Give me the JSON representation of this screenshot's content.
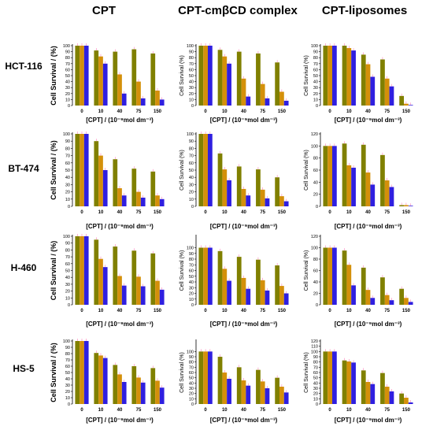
{
  "column_titles": [
    "CPT",
    "CPT-cmβCD complex",
    "CPT-liposomes"
  ],
  "row_labels": [
    "HCT-116",
    "BT-474",
    "H-460",
    "HS-5"
  ],
  "colors": {
    "bar1": "#808000",
    "bar2": "#d4900a",
    "bar3": "#2f1fe0",
    "err": "#ff66aa"
  },
  "chart_data": [
    {
      "type": "bar",
      "cell_line": "HCT-116",
      "formulation": "CPT",
      "categories": [
        "0",
        "10",
        "40",
        "75",
        "150"
      ],
      "series": [
        {
          "values": [
            100,
            92,
            90,
            94,
            87
          ]
        },
        {
          "values": [
            100,
            82,
            52,
            40,
            25
          ]
        },
        {
          "values": [
            100,
            70,
            20,
            12,
            10
          ]
        }
      ],
      "ylabel": "Cell Survival / (%)",
      "xlabel": "[CPT] / (10⁻⁹mol dm⁻³)",
      "ylim": [
        0,
        100
      ],
      "yticks": [
        0,
        10,
        20,
        30,
        40,
        50,
        60,
        70,
        80,
        90,
        100
      ]
    },
    {
      "type": "bar",
      "cell_line": "HCT-116",
      "formulation": "CPT-cmβCD complex",
      "categories": [
        "0",
        "10",
        "40",
        "75",
        "150"
      ],
      "series": [
        {
          "values": [
            100,
            93,
            90,
            87,
            72
          ]
        },
        {
          "values": [
            100,
            82,
            45,
            36,
            23
          ]
        },
        {
          "values": [
            100,
            70,
            15,
            12,
            8
          ]
        }
      ],
      "ylabel": "Cell Survival (%)",
      "xlabel": "[CPT] / (10⁻⁹mol dm⁻³)",
      "ylim": [
        0,
        100
      ],
      "yticks": [
        0,
        10,
        20,
        30,
        40,
        50,
        60,
        70,
        80,
        90,
        100
      ]
    },
    {
      "type": "bar",
      "cell_line": "HCT-116",
      "formulation": "CPT-liposomes",
      "categories": [
        "0",
        "10",
        "40",
        "75",
        "150"
      ],
      "series": [
        {
          "values": [
            100,
            100,
            85,
            77,
            16
          ]
        },
        {
          "values": [
            100,
            96,
            69,
            45,
            3
          ]
        },
        {
          "values": [
            100,
            92,
            48,
            32,
            1
          ]
        }
      ],
      "ylabel": "Cell Survival (%)",
      "xlabel": "[CPT] / (10⁻⁹mol dm⁻³)",
      "ylim": [
        0,
        100
      ],
      "yticks": [
        0,
        10,
        20,
        30,
        40,
        50,
        60,
        70,
        80,
        90,
        100
      ]
    },
    {
      "type": "bar",
      "cell_line": "BT-474",
      "formulation": "CPT",
      "categories": [
        "0",
        "10",
        "40",
        "75",
        "150"
      ],
      "series": [
        {
          "values": [
            100,
            90,
            65,
            52,
            48
          ]
        },
        {
          "values": [
            100,
            70,
            25,
            20,
            15
          ]
        },
        {
          "values": [
            100,
            50,
            15,
            12,
            10
          ]
        }
      ],
      "ylabel": "Cell Survival / (%)",
      "xlabel": "[CPT] / (10⁻⁹mol dm⁻³)",
      "ylim": [
        0,
        100
      ],
      "yticks": [
        0,
        10,
        20,
        30,
        40,
        50,
        60,
        70,
        80,
        90,
        100
      ]
    },
    {
      "type": "bar",
      "cell_line": "BT-474",
      "formulation": "CPT-cmβCD complex",
      "categories": [
        "0",
        "10",
        "40",
        "75",
        "150"
      ],
      "series": [
        {
          "values": [
            100,
            73,
            55,
            51,
            40
          ]
        },
        {
          "values": [
            100,
            51,
            24,
            23,
            14
          ]
        },
        {
          "values": [
            100,
            36,
            15,
            11,
            7
          ]
        }
      ],
      "ylabel": "Cell Survival (%)",
      "xlabel": "[CPT] / (10⁻⁹mol dm⁻³)",
      "ylim": [
        0,
        100
      ],
      "yticks": [
        0,
        10,
        20,
        30,
        40,
        50,
        60,
        70,
        80,
        90,
        100
      ]
    },
    {
      "type": "bar",
      "cell_line": "BT-474",
      "formulation": "CPT-liposomes",
      "categories": [
        "0",
        "10",
        "40",
        "75",
        "150"
      ],
      "series": [
        {
          "values": [
            100,
            104,
            102,
            85,
            2
          ]
        },
        {
          "values": [
            100,
            68,
            56,
            43,
            2
          ]
        },
        {
          "values": [
            100,
            64,
            36,
            32,
            1
          ]
        }
      ],
      "ylabel": "Cell Survival (%)",
      "xlabel": "[CPT] / (10⁻⁹mol dm⁻³)",
      "ylim": [
        0,
        120
      ],
      "yticks": [
        0,
        20,
        40,
        60,
        80,
        100,
        120
      ]
    },
    {
      "type": "bar",
      "cell_line": "H-460",
      "formulation": "CPT",
      "categories": [
        "0",
        "10",
        "40",
        "75",
        "150"
      ],
      "series": [
        {
          "values": [
            100,
            95,
            85,
            79,
            75
          ]
        },
        {
          "values": [
            100,
            67,
            42,
            41,
            35
          ]
        },
        {
          "values": [
            100,
            55,
            28,
            27,
            22
          ]
        }
      ],
      "ylabel": "Cell Survival / (%)",
      "xlabel": "[CPT] / (10⁻⁹mol dm⁻³)",
      "ylim": [
        0,
        100
      ],
      "yticks": [
        0,
        10,
        20,
        30,
        40,
        50,
        60,
        70,
        80,
        90,
        100
      ]
    },
    {
      "type": "bar",
      "cell_line": "H-460",
      "formulation": "CPT-cmβCD complex",
      "categories": [
        "0",
        "10",
        "40",
        "75",
        "150"
      ],
      "series": [
        {
          "values": [
            100,
            94,
            84,
            79,
            69
          ]
        },
        {
          "values": [
            100,
            63,
            47,
            43,
            33
          ]
        },
        {
          "values": [
            100,
            42,
            28,
            25,
            20
          ]
        }
      ],
      "ylabel": "Cell Survival (%)",
      "xlabel": "[CPT] / (10⁻⁹mol dm⁻³)",
      "ylim": [
        0,
        120
      ],
      "yticks": [
        0,
        10,
        20,
        30,
        40,
        50,
        60,
        70,
        80,
        90,
        100
      ]
    },
    {
      "type": "bar",
      "cell_line": "H-460",
      "formulation": "CPT-liposomes",
      "categories": [
        "0",
        "10",
        "40",
        "75",
        "150"
      ],
      "series": [
        {
          "values": [
            100,
            95,
            65,
            48,
            28
          ]
        },
        {
          "values": [
            100,
            70,
            26,
            17,
            12
          ]
        },
        {
          "values": [
            100,
            34,
            12,
            8,
            5
          ]
        }
      ],
      "ylabel": "Cell Survival (%)",
      "xlabel": "[CPT] / (10⁻⁹mol dm⁻³)",
      "ylim": [
        0,
        120
      ],
      "yticks": [
        0,
        20,
        40,
        60,
        80,
        100,
        120
      ]
    },
    {
      "type": "bar",
      "cell_line": "HS-5",
      "formulation": "CPT",
      "categories": [
        "0",
        "10",
        "40",
        "75",
        "150"
      ],
      "series": [
        {
          "values": [
            100,
            81,
            62,
            60,
            57
          ]
        },
        {
          "values": [
            100,
            77,
            47,
            42,
            37
          ]
        },
        {
          "values": [
            100,
            73,
            35,
            34,
            26
          ]
        }
      ],
      "ylabel": "Cell Survival / (%)",
      "xlabel": "[CPT] / (10⁻⁹mol dm⁻³)",
      "ylim": [
        0,
        100
      ],
      "yticks": [
        0,
        10,
        20,
        30,
        40,
        50,
        60,
        70,
        80,
        90,
        100
      ]
    },
    {
      "type": "bar",
      "cell_line": "HS-5",
      "formulation": "CPT-cmβCD complex",
      "categories": [
        "0",
        "10",
        "40",
        "75",
        "150"
      ],
      "series": [
        {
          "values": [
            100,
            90,
            70,
            65,
            50
          ]
        },
        {
          "values": [
            100,
            60,
            45,
            43,
            33
          ]
        },
        {
          "values": [
            100,
            48,
            35,
            30,
            22
          ]
        }
      ],
      "ylabel": "Cell Survival (%)",
      "xlabel": "[CPT] / (10⁻⁹mol dm⁻³)",
      "ylim": [
        0,
        120
      ],
      "yticks": [
        0,
        10,
        20,
        30,
        40,
        50,
        60,
        70,
        80,
        90,
        100
      ]
    },
    {
      "type": "bar",
      "cell_line": "HS-5",
      "formulation": "CPT-liposomes",
      "categories": [
        "0",
        "10",
        "40",
        "75",
        "150"
      ],
      "series": [
        {
          "values": [
            100,
            83,
            64,
            59,
            20
          ]
        },
        {
          "values": [
            100,
            81,
            42,
            33,
            12
          ]
        },
        {
          "values": [
            100,
            79,
            38,
            24,
            3
          ]
        }
      ],
      "ylabel": "Cell Survival (%)",
      "xlabel": "[CPT] / (10⁻⁹mol dm⁻³)",
      "ylim": [
        0,
        120
      ],
      "yticks": [
        0,
        10,
        20,
        30,
        40,
        50,
        60,
        70,
        80,
        90,
        100,
        110,
        120
      ]
    }
  ]
}
